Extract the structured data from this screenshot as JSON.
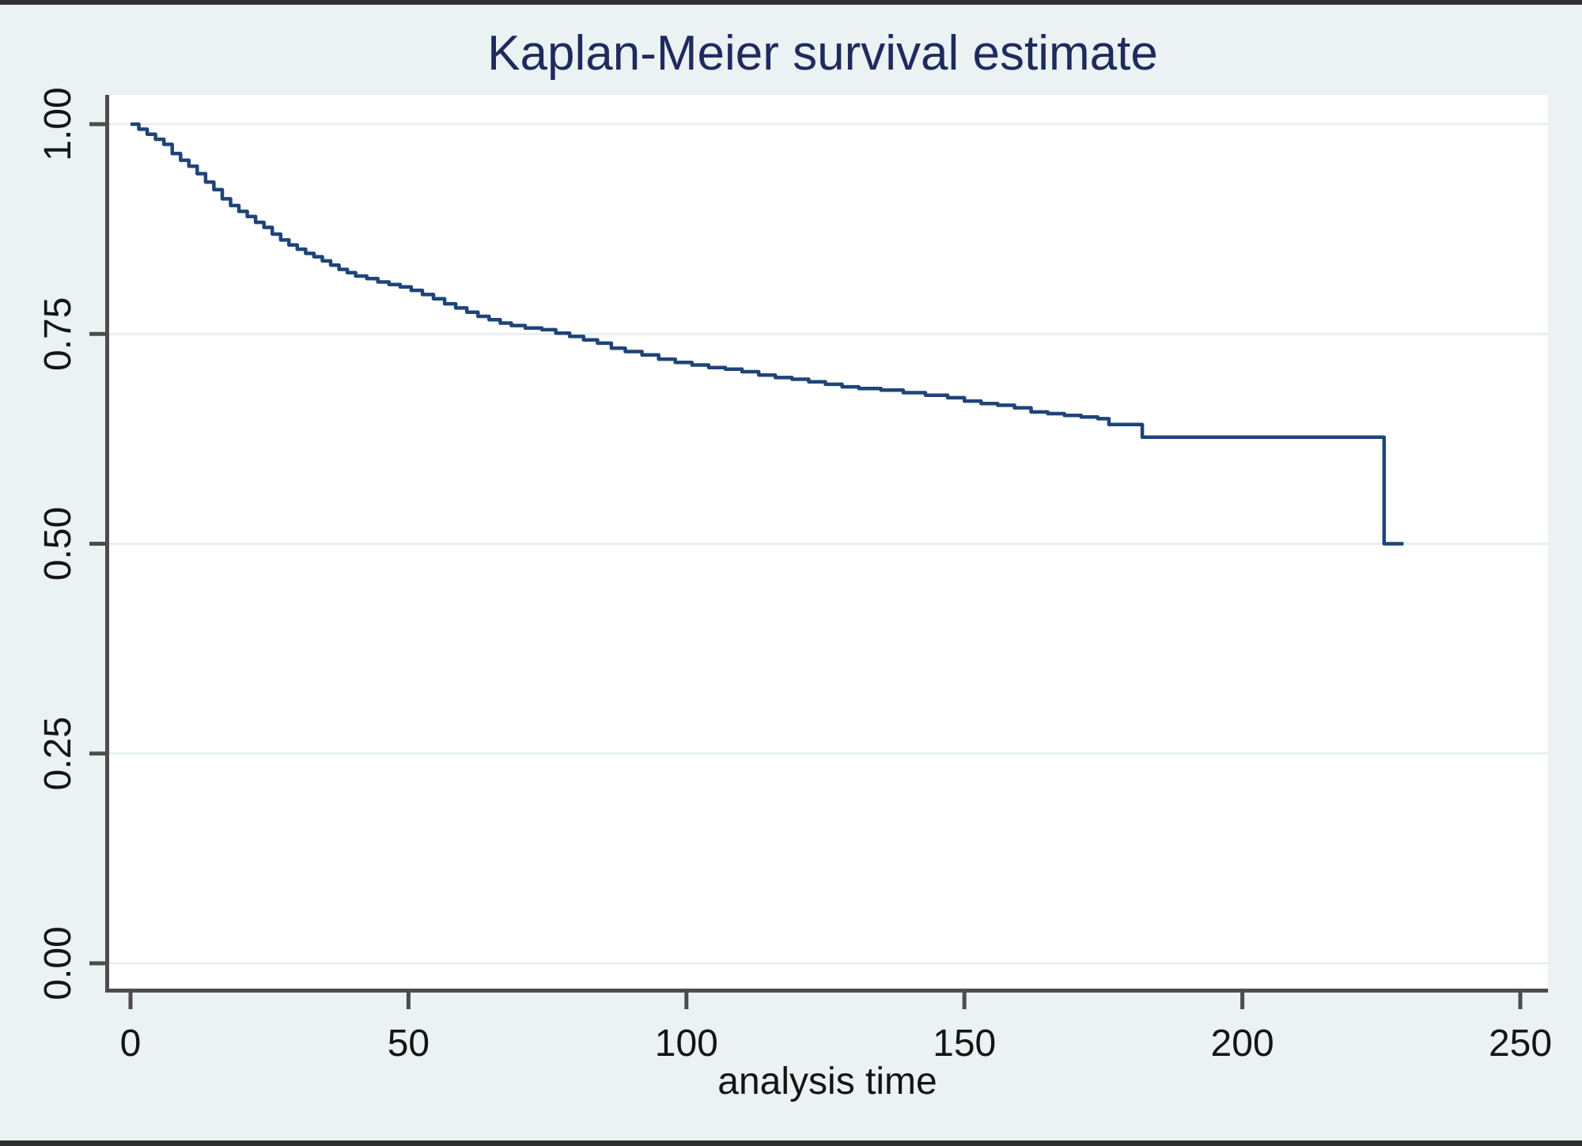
{
  "page": {
    "background": "#eaf2f3",
    "edge_border_color": "#2f2f2f"
  },
  "chart_data": {
    "type": "line",
    "subtype": "kaplan-meier-step-function",
    "title": "Kaplan-Meier survival estimate",
    "xlabel": "analysis time",
    "ylabel": "",
    "xlim": [
      0,
      250
    ],
    "ylim": [
      0.0,
      1.0
    ],
    "x_ticks": [
      0,
      50,
      100,
      150,
      200,
      250
    ],
    "y_ticks": [
      0.0,
      0.25,
      0.5,
      0.75,
      1.0
    ],
    "y_tick_labels": [
      "0.00",
      "0.25",
      "0.50",
      "0.75",
      "1.00"
    ],
    "grid": "horizontal gridlines at y ticks",
    "legend_position": "none",
    "colors": {
      "curve": "#1f4478",
      "title_text": "#1f2a5e",
      "axis_line": "#4c4c4c",
      "tick_label_text": "#141414",
      "gridline": "#e7eff1",
      "plot_background": "#ffffff",
      "page_background": "#eaf2f3"
    },
    "series": [
      {
        "name": "Kaplan-Meier survival estimate",
        "color": "#1f4478",
        "step_points_t_s": [
          [
            0,
            1.0
          ],
          [
            1.5,
            0.994
          ],
          [
            3,
            0.988
          ],
          [
            4.5,
            0.982
          ],
          [
            6,
            0.976
          ],
          [
            7.5,
            0.965
          ],
          [
            9,
            0.957
          ],
          [
            10.5,
            0.95
          ],
          [
            12,
            0.941
          ],
          [
            13.5,
            0.931
          ],
          [
            15,
            0.922
          ],
          [
            16.5,
            0.911
          ],
          [
            18,
            0.903
          ],
          [
            19.5,
            0.896
          ],
          [
            21,
            0.89
          ],
          [
            22.5,
            0.883
          ],
          [
            24,
            0.877
          ],
          [
            25.5,
            0.869
          ],
          [
            27,
            0.862
          ],
          [
            28.5,
            0.856
          ],
          [
            30,
            0.851
          ],
          [
            31.5,
            0.846
          ],
          [
            33,
            0.842
          ],
          [
            34.5,
            0.837
          ],
          [
            36,
            0.832
          ],
          [
            37.5,
            0.827
          ],
          [
            39,
            0.823
          ],
          [
            40.5,
            0.819
          ],
          [
            42.5,
            0.816
          ],
          [
            44.5,
            0.812
          ],
          [
            46.5,
            0.809
          ],
          [
            48.5,
            0.806
          ],
          [
            50.5,
            0.802
          ],
          [
            52.5,
            0.797
          ],
          [
            54.5,
            0.792
          ],
          [
            56.5,
            0.786
          ],
          [
            58.5,
            0.781
          ],
          [
            60.5,
            0.776
          ],
          [
            62.5,
            0.771
          ],
          [
            64.5,
            0.767
          ],
          [
            66.5,
            0.763
          ],
          [
            68.5,
            0.76
          ],
          [
            71,
            0.757
          ],
          [
            74,
            0.755
          ],
          [
            76.5,
            0.751
          ],
          [
            79,
            0.747
          ],
          [
            81.5,
            0.743
          ],
          [
            84,
            0.739
          ],
          [
            86.5,
            0.733
          ],
          [
            89,
            0.729
          ],
          [
            92,
            0.725
          ],
          [
            95,
            0.72
          ],
          [
            98,
            0.716
          ],
          [
            101,
            0.713
          ],
          [
            104,
            0.71
          ],
          [
            107,
            0.708
          ],
          [
            110,
            0.705
          ],
          [
            113,
            0.701
          ],
          [
            116,
            0.698
          ],
          [
            119,
            0.696
          ],
          [
            122,
            0.693
          ],
          [
            125,
            0.69
          ],
          [
            128,
            0.687
          ],
          [
            131,
            0.685
          ],
          [
            135,
            0.683
          ],
          [
            139,
            0.68
          ],
          [
            143,
            0.677
          ],
          [
            147,
            0.674
          ],
          [
            150,
            0.67
          ],
          [
            153,
            0.667
          ],
          [
            156,
            0.665
          ],
          [
            159,
            0.662
          ],
          [
            162,
            0.657
          ],
          [
            165,
            0.655
          ],
          [
            168,
            0.653
          ],
          [
            171,
            0.651
          ],
          [
            174,
            0.649
          ],
          [
            176,
            0.642
          ],
          [
            182,
            0.627
          ],
          [
            225.5,
            0.5
          ],
          [
            229,
            0.5
          ]
        ]
      }
    ]
  }
}
